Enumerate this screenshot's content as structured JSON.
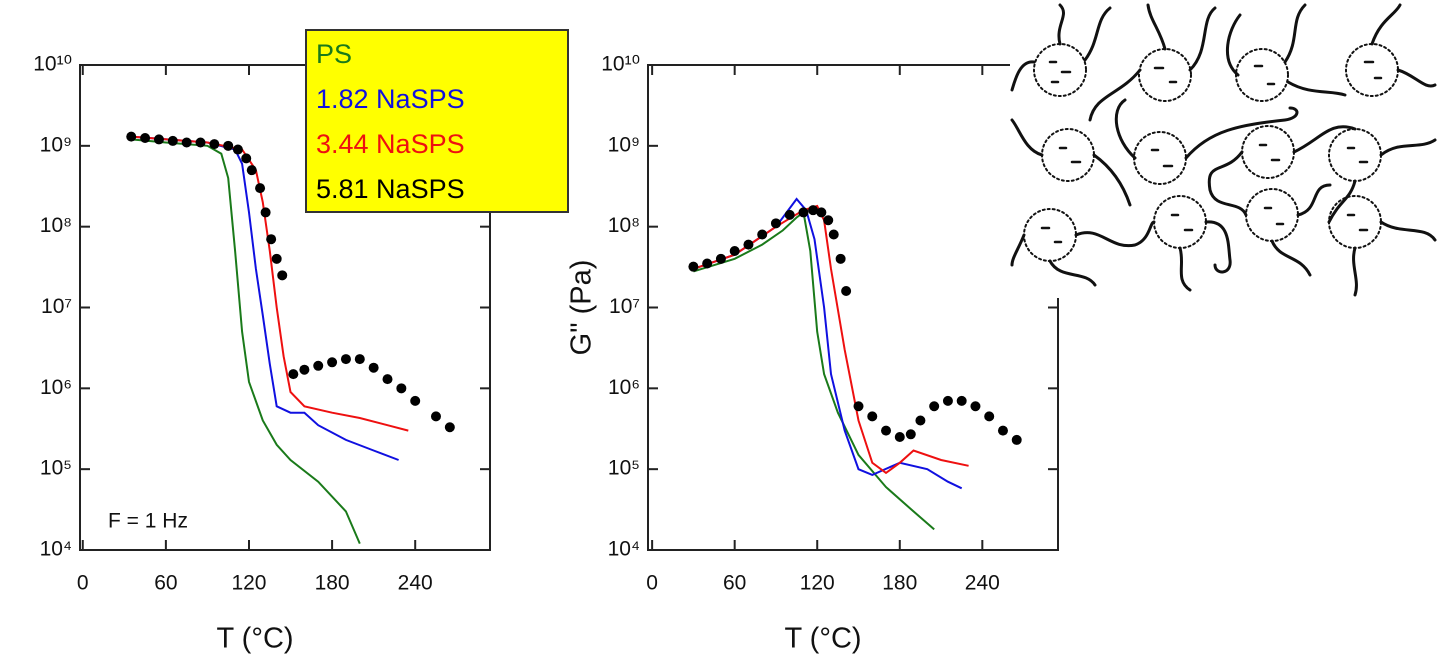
{
  "chart_data": [
    {
      "type": "line",
      "x_label": "T (°C)",
      "yscale": "log",
      "legend": "top-center",
      "annotation": "F = 1 Hz",
      "xlim": [
        -2,
        294
      ],
      "ylim": [
        10000,
        10000000000
      ],
      "xticks": [
        0,
        60,
        120,
        180,
        240
      ],
      "yticks": [
        {
          "value": 10000,
          "label": "10⁴"
        },
        {
          "value": 100000,
          "label": "10⁵"
        },
        {
          "value": 1000000,
          "label": "10⁶"
        },
        {
          "value": 10000000,
          "label": "10⁷"
        },
        {
          "value": 100000000,
          "label": "10⁸"
        },
        {
          "value": 1000000000,
          "label": "10⁹"
        },
        {
          "value": 10000000000,
          "label": "10¹⁰"
        }
      ],
      "series": [
        {
          "name": "PS",
          "color": "#1a7a1a",
          "marker": "line",
          "x": [
            35,
            60,
            90,
            100,
            105,
            110,
            115,
            120,
            130,
            140,
            150,
            170,
            190,
            200
          ],
          "values": [
            1200000000,
            1100000000,
            1000000000,
            800000000,
            400000000,
            50000000,
            5000000,
            1200000,
            400000,
            200000,
            130000,
            70000,
            30000,
            12000
          ]
        },
        {
          "name": "1.82 NaSPS",
          "color": "#1010e0",
          "marker": "line",
          "x": [
            35,
            90,
            110,
            115,
            120,
            125,
            130,
            135,
            140,
            150,
            160,
            170,
            190,
            210,
            228
          ],
          "values": [
            1300000000,
            1100000000,
            900000000,
            600000000,
            150000000,
            30000000,
            8000000,
            2000000,
            600000,
            500000,
            500000,
            350000,
            230000,
            170000,
            130000
          ]
        },
        {
          "name": "3.44 NaSPS",
          "color": "#ee1010",
          "marker": "line",
          "x": [
            35,
            90,
            115,
            125,
            130,
            135,
            140,
            145,
            150,
            160,
            180,
            200,
            220,
            235
          ],
          "values": [
            1300000000,
            1100000000,
            900000000,
            500000000,
            200000000,
            50000000,
            10000000,
            2500000,
            900000,
            600000,
            500000,
            430000,
            350000,
            300000
          ]
        },
        {
          "name": "5.81 NaSPS",
          "color": "#000000",
          "marker": "dot",
          "x": [
            35,
            45,
            55,
            65,
            75,
            85,
            95,
            105,
            112,
            118,
            122,
            128,
            132,
            136,
            140,
            144,
            152,
            160,
            170,
            180,
            190,
            200,
            210,
            220,
            230,
            240,
            255,
            265
          ],
          "values": [
            1300000000,
            1250000000,
            1200000000,
            1150000000,
            1100000000,
            1100000000,
            1050000000,
            1000000000,
            900000000,
            700000000,
            500000000,
            300000000,
            150000000,
            70000000,
            40000000,
            25000000,
            1500000,
            1700000,
            1900000,
            2100000,
            2300000,
            2300000,
            1800000,
            1300000,
            1000000,
            700000,
            450000,
            330000
          ]
        }
      ]
    },
    {
      "type": "line",
      "x_label": "T (°C)",
      "y_label": "G\" (Pa)",
      "yscale": "log",
      "xlim": [
        -3,
        295
      ],
      "ylim": [
        10000,
        10000000000
      ],
      "xticks": [
        0,
        60,
        120,
        180,
        240
      ],
      "yticks": [
        {
          "value": 10000,
          "label": "10⁴"
        },
        {
          "value": 100000,
          "label": "10⁵"
        },
        {
          "value": 1000000,
          "label": "10⁶"
        },
        {
          "value": 10000000,
          "label": "10⁷"
        },
        {
          "value": 100000000,
          "label": "10⁸"
        },
        {
          "value": 1000000000,
          "label": "10⁹"
        },
        {
          "value": 10000000000,
          "label": "10¹⁰"
        }
      ],
      "series": [
        {
          "color": "#1a7a1a",
          "marker": "line",
          "x": [
            30,
            60,
            80,
            95,
            105,
            110,
            115,
            120,
            125,
            135,
            150,
            170,
            190,
            205
          ],
          "values": [
            28000000,
            40000000,
            60000000,
            90000000,
            130000000,
            150000000,
            50000000,
            5000000,
            1500000,
            500000,
            150000,
            60000,
            30000,
            18000
          ]
        },
        {
          "color": "#1010e0",
          "marker": "line",
          "x": [
            30,
            60,
            90,
            105,
            112,
            118,
            125,
            130,
            140,
            150,
            160,
            175,
            180,
            200,
            215,
            225
          ],
          "values": [
            30000000,
            45000000,
            100000000,
            220000000,
            160000000,
            70000000,
            10000000,
            1500000,
            300000,
            100000,
            85000,
            110000,
            120000,
            100000,
            70000,
            58000
          ]
        },
        {
          "color": "#ee1010",
          "marker": "line",
          "x": [
            30,
            60,
            90,
            110,
            120,
            125,
            130,
            140,
            150,
            160,
            170,
            180,
            190,
            210,
            230
          ],
          "values": [
            30000000,
            45000000,
            100000000,
            160000000,
            180000000,
            120000000,
            30000000,
            3000000,
            400000,
            120000,
            90000,
            120000,
            170000,
            130000,
            110000
          ]
        },
        {
          "color": "#000000",
          "marker": "dot",
          "x": [
            30,
            40,
            50,
            60,
            70,
            80,
            90,
            100,
            110,
            117,
            123,
            128,
            132,
            137,
            141,
            150,
            160,
            170,
            180,
            188,
            195,
            205,
            215,
            225,
            235,
            245,
            255,
            265
          ],
          "values": [
            32000000,
            35000000,
            40000000,
            50000000,
            60000000,
            80000000,
            110000000,
            140000000,
            150000000,
            160000000,
            150000000,
            120000000,
            80000000,
            40000000,
            16000000,
            600000,
            450000,
            300000,
            250000,
            270000,
            400000,
            600000,
            700000,
            700000,
            600000,
            450000,
            300000,
            230000
          ]
        }
      ]
    }
  ]
}
